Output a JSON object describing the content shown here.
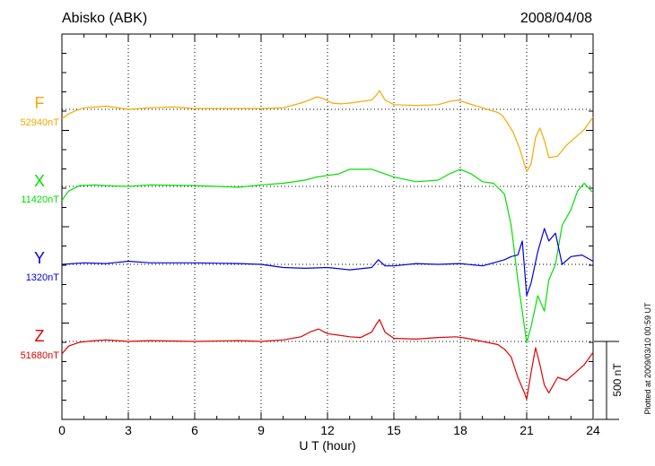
{
  "chart_data": {
    "type": "line",
    "title": "Abisko (ABK)",
    "date": "2008/04/08",
    "xlabel": "U T (hour)",
    "xlim": [
      0,
      24
    ],
    "x_ticks": [
      0,
      3,
      6,
      9,
      12,
      15,
      18,
      21,
      24
    ],
    "scale_label": "500 nT",
    "scale_nT": 500,
    "plotted_note": "Plotted at 2009/03/10 00:59 UT",
    "series": [
      {
        "name": "F",
        "baseline_label": "52940nT",
        "color": "#f5a800",
        "x": [
          0,
          0.3,
          0.6,
          1.0,
          1.5,
          2.0,
          3.0,
          4.0,
          5.0,
          6.0,
          7.0,
          8.0,
          9.0,
          10.0,
          10.8,
          11.2,
          11.5,
          11.8,
          12.2,
          12.6,
          13.0,
          13.5,
          14.0,
          14.2,
          14.35,
          14.6,
          15.0,
          16.0,
          17.0,
          17.5,
          17.9,
          18.3,
          19.0,
          19.7,
          19.9,
          20.1,
          20.4,
          20.7,
          21.0,
          21.2,
          21.4,
          21.6,
          21.8,
          22.0,
          22.4,
          22.8,
          23.2,
          23.6,
          24.0
        ],
        "y": [
          -60,
          -30,
          -10,
          10,
          15,
          20,
          0,
          10,
          15,
          5,
          5,
          5,
          5,
          10,
          40,
          60,
          80,
          70,
          40,
          35,
          40,
          50,
          60,
          90,
          120,
          60,
          30,
          25,
          30,
          50,
          60,
          40,
          10,
          -20,
          -40,
          -80,
          -150,
          -260,
          -400,
          -350,
          -180,
          -120,
          -200,
          -310,
          -300,
          -230,
          -180,
          -130,
          -50
        ]
      },
      {
        "name": "X",
        "baseline_label": "11420nT",
        "color": "#00e000",
        "x": [
          0,
          0.3,
          0.8,
          1.5,
          2.0,
          3.0,
          4.0,
          6.0,
          7.0,
          8.0,
          9.0,
          10.0,
          11.0,
          11.5,
          12.0,
          12.5,
          13.0,
          14.0,
          15.0,
          16.0,
          17.0,
          17.5,
          18.0,
          18.5,
          19.0,
          19.5,
          20.0,
          20.3,
          20.6,
          20.9,
          21.0,
          21.2,
          21.5,
          21.8,
          22.0,
          22.3,
          22.6,
          23.0,
          23.3,
          23.6,
          24.0
        ],
        "y": [
          -90,
          -30,
          5,
          10,
          5,
          0,
          10,
          5,
          0,
          -5,
          10,
          20,
          40,
          60,
          70,
          80,
          110,
          110,
          60,
          30,
          40,
          80,
          110,
          80,
          30,
          20,
          -50,
          -250,
          -600,
          -900,
          -1000,
          -900,
          -700,
          -800,
          -600,
          -500,
          -250,
          -150,
          -30,
          20,
          -40
        ]
      },
      {
        "name": "Y",
        "baseline_label": "1320nT",
        "color": "#0000e0",
        "x": [
          0,
          1.0,
          2.0,
          3.0,
          4.0,
          6.0,
          8.0,
          9.0,
          10.0,
          11.0,
          12.0,
          13.0,
          14.0,
          14.3,
          14.6,
          15.0,
          16.0,
          17.0,
          18.0,
          19.0,
          19.5,
          20.0,
          20.3,
          20.6,
          20.8,
          21.0,
          21.2,
          21.5,
          21.8,
          22.0,
          22.3,
          22.6,
          23.0,
          23.5,
          24.0
        ],
        "y": [
          0,
          10,
          5,
          20,
          10,
          10,
          5,
          0,
          -20,
          -25,
          -20,
          -35,
          -20,
          30,
          -10,
          -10,
          5,
          0,
          5,
          -10,
          10,
          30,
          50,
          60,
          150,
          -200,
          -120,
          80,
          230,
          150,
          200,
          0,
          50,
          60,
          20
        ]
      },
      {
        "name": "Z",
        "baseline_label": "51680nT",
        "color": "#e00000",
        "x": [
          0,
          0.3,
          0.8,
          1.5,
          2.0,
          3.0,
          4.0,
          6.0,
          8.0,
          9.0,
          10.0,
          10.8,
          11.2,
          11.6,
          12.0,
          12.5,
          13.0,
          13.5,
          14.0,
          14.2,
          14.35,
          14.6,
          15.0,
          16.0,
          17.0,
          17.8,
          18.3,
          19.0,
          19.7,
          20.0,
          20.3,
          20.6,
          20.9,
          21.0,
          21.2,
          21.4,
          21.6,
          21.8,
          22.0,
          22.4,
          22.8,
          23.2,
          23.6,
          24.0
        ],
        "y": [
          -80,
          -30,
          -5,
          5,
          10,
          0,
          5,
          0,
          5,
          0,
          10,
          30,
          60,
          80,
          50,
          40,
          30,
          25,
          60,
          110,
          140,
          60,
          20,
          15,
          25,
          30,
          20,
          0,
          -20,
          -50,
          -100,
          -230,
          -330,
          -370,
          -200,
          -40,
          -150,
          -280,
          -330,
          -230,
          -250,
          -200,
          -150,
          -70
        ]
      }
    ]
  }
}
